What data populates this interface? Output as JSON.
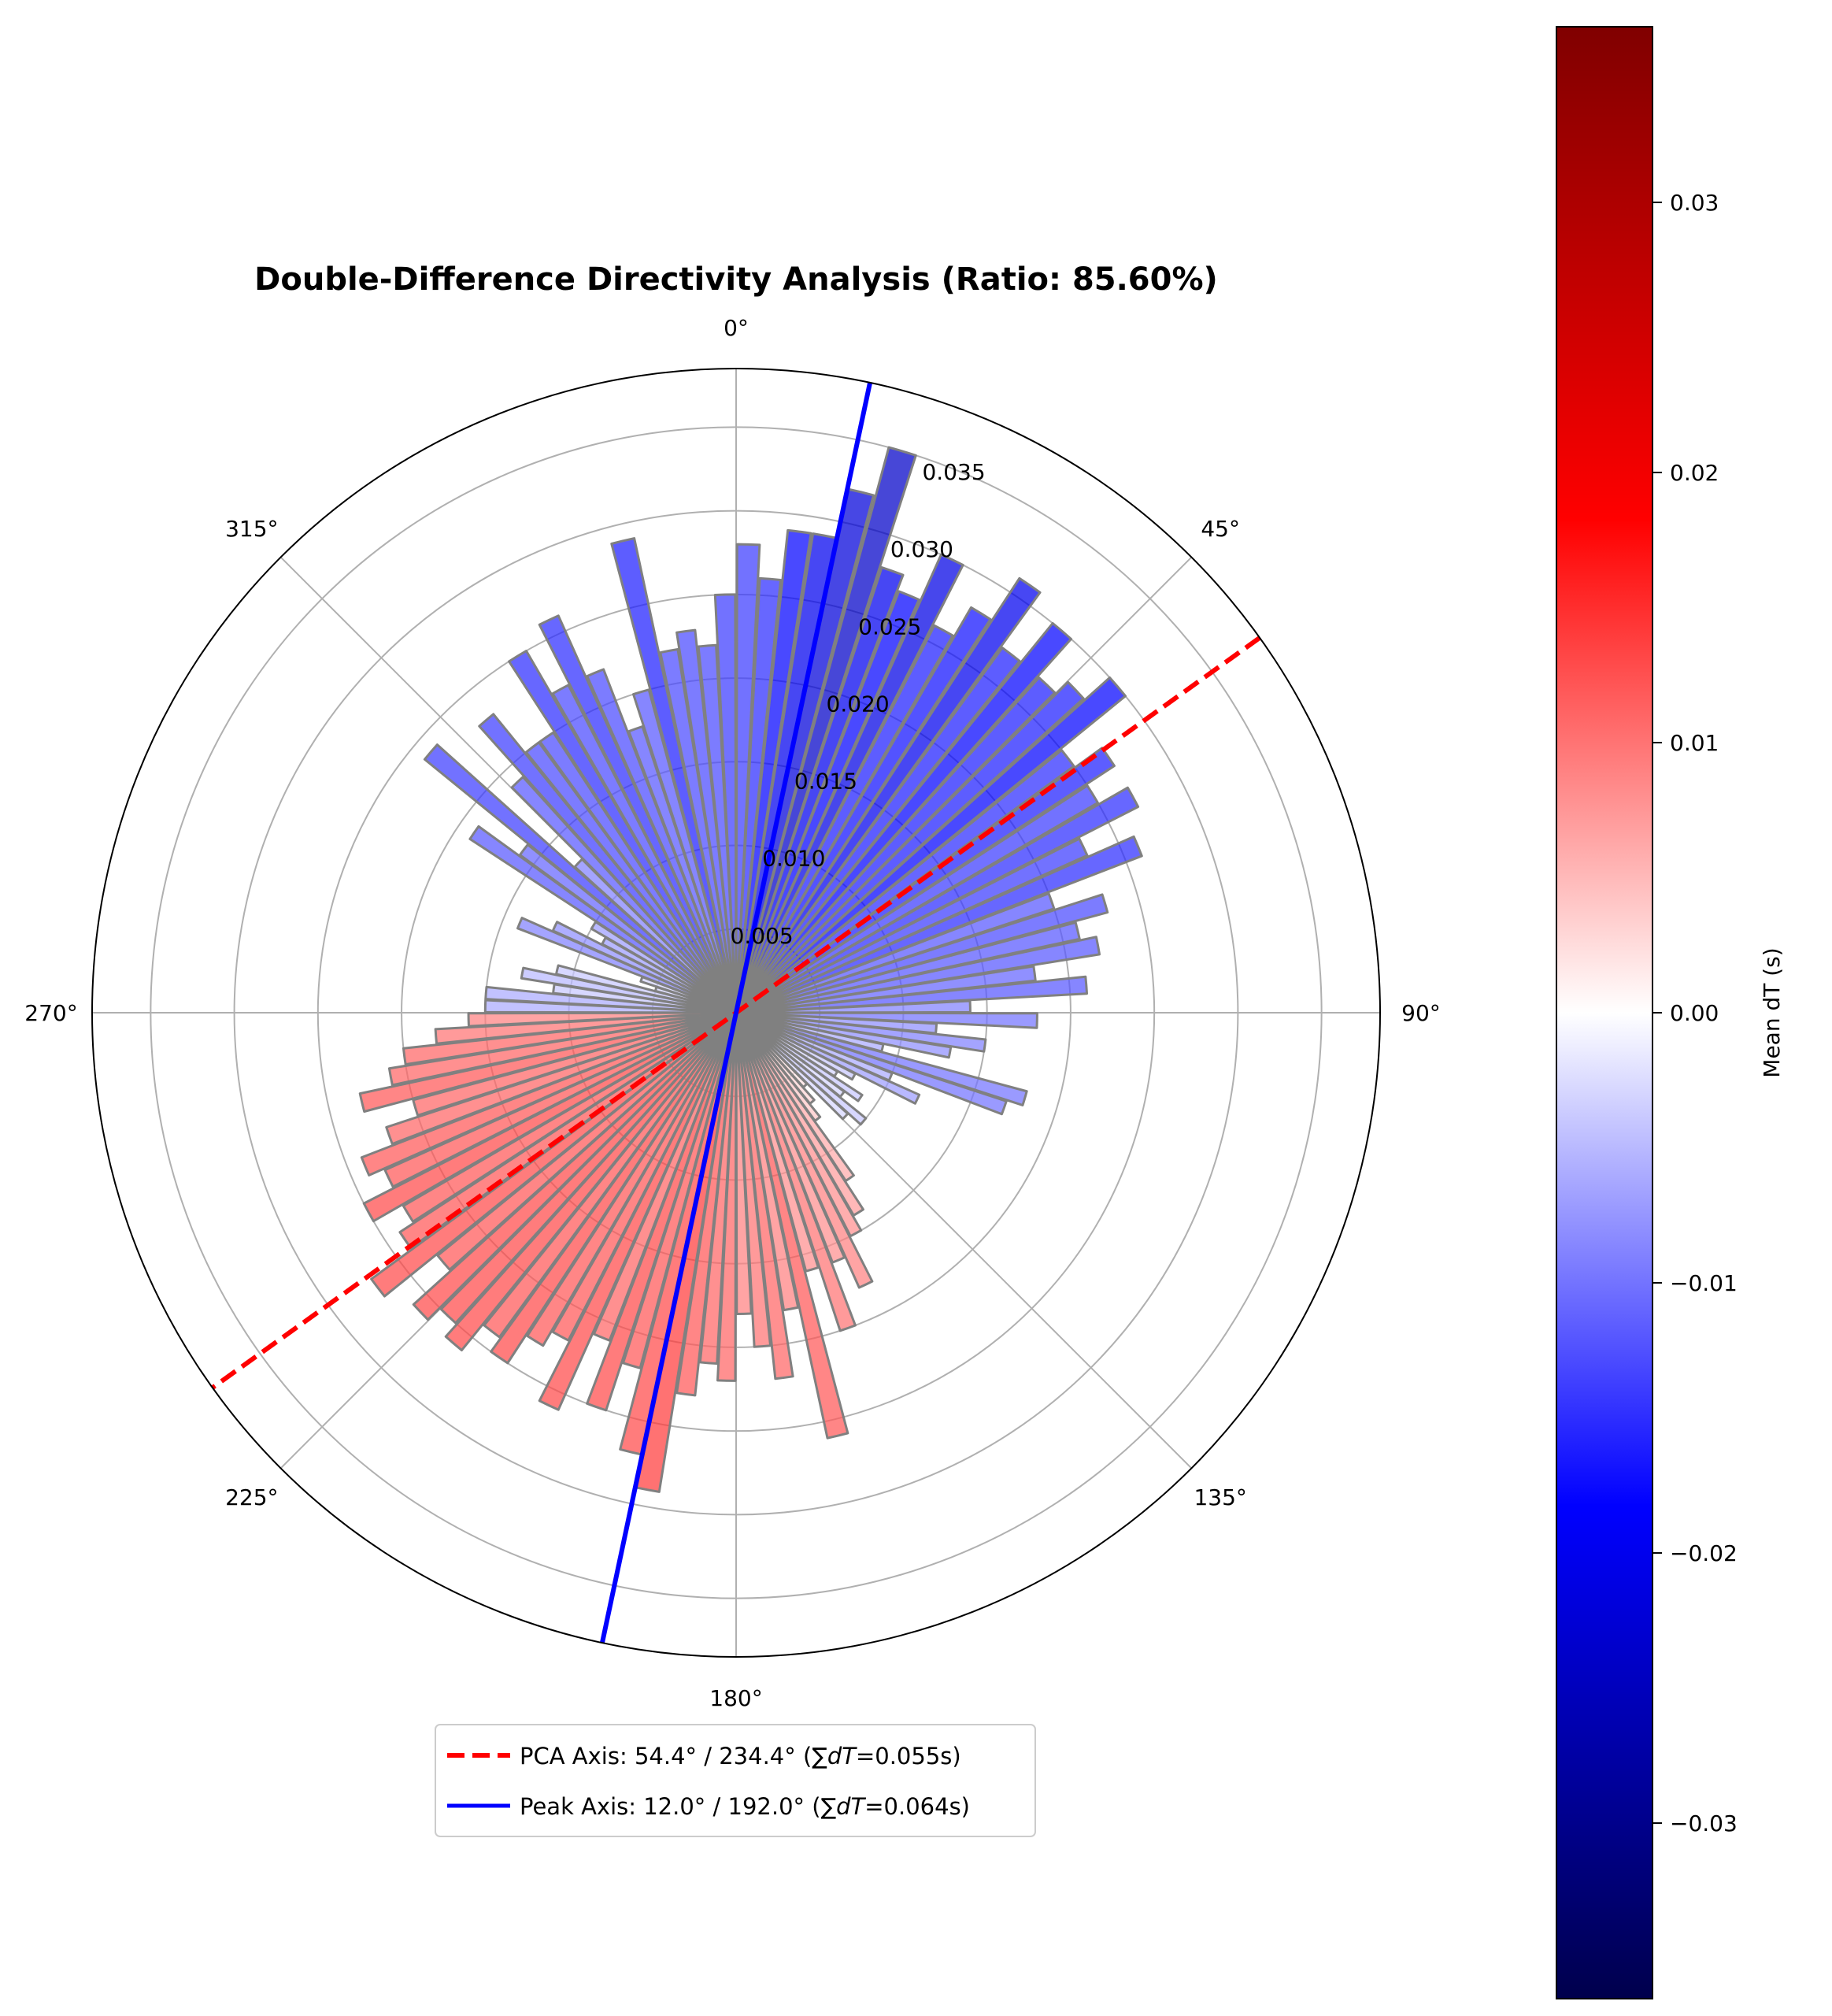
{
  "chart_data": {
    "type": "polar-bar",
    "title": "Double-Difference Directivity Analysis (Ratio: 85.60%)",
    "angle_ticks": [
      "0°",
      "45°",
      "90°",
      "135°",
      "180°",
      "225°",
      "270°",
      "315°"
    ],
    "angle_tick_values": [
      0,
      45,
      90,
      135,
      180,
      225,
      270,
      315
    ],
    "radial_ticks": [
      "0.005",
      "0.010",
      "0.015",
      "0.020",
      "0.025",
      "0.030",
      "0.035"
    ],
    "radial_tick_values": [
      0.005,
      0.01,
      0.015,
      0.02,
      0.025,
      0.03,
      0.035
    ],
    "rmax": 0.0385,
    "theta_zero": "N",
    "theta_direction": "clockwise",
    "bin_width_deg": 3,
    "bin_centers_deg": [
      1.5,
      4.5,
      7.5,
      10.5,
      13.5,
      16.5,
      19.5,
      22.5,
      25.5,
      28.5,
      31.5,
      34.5,
      37.5,
      40.5,
      43.5,
      46.5,
      49.5,
      52.5,
      55.5,
      58.5,
      61.5,
      64.5,
      67.5,
      70.5,
      73.5,
      76.5,
      79.5,
      82.5,
      85.5,
      88.5,
      91.5,
      94.5,
      97.5,
      100.5,
      103.5,
      106.5,
      109.5,
      112.5,
      115.5,
      118.5,
      121.5,
      124.5,
      127.5,
      130.5,
      133.5,
      136.5,
      139.5,
      142.5,
      145.5,
      148.5,
      151.5,
      154.5,
      157.5,
      160.5,
      163.5,
      166.5,
      169.5,
      172.5,
      175.5,
      178.5,
      181.5,
      184.5,
      187.5,
      190.5,
      193.5,
      196.5,
      199.5,
      202.5,
      205.5,
      208.5,
      211.5,
      214.5,
      217.5,
      220.5,
      223.5,
      226.5,
      229.5,
      232.5,
      235.5,
      238.5,
      241.5,
      244.5,
      247.5,
      250.5,
      253.5,
      256.5,
      259.5,
      262.5,
      265.5,
      268.5,
      271.5,
      274.5,
      277.5,
      280.5,
      283.5,
      286.5,
      289.5,
      292.5,
      295.5,
      298.5,
      301.5,
      304.5,
      307.5,
      310.5,
      313.5,
      316.5,
      319.5,
      322.5,
      325.5,
      328.5,
      331.5,
      334.5,
      337.5,
      340.5,
      343.5,
      346.5,
      349.5,
      352.5,
      355.5,
      358.5
    ],
    "radii": [
      0.028,
      0.026,
      0.029,
      0.029,
      0.032,
      0.035,
      0.028,
      0.027,
      0.03,
      0.026,
      0.028,
      0.031,
      0.027,
      0.03,
      0.027,
      0.028,
      0.03,
      0.025,
      0.027,
      0.025,
      0.027,
      0.023,
      0.026,
      0.02,
      0.023,
      0.021,
      0.022,
      0.018,
      0.021,
      0.014,
      0.018,
      0.012,
      0.015,
      0.013,
      0.009,
      0.018,
      0.017,
      0.01,
      0.012,
      0.008,
      0.007,
      0.009,
      0.008,
      0.01,
      0.009,
      0.006,
      0.007,
      0.008,
      0.012,
      0.014,
      0.015,
      0.018,
      0.016,
      0.02,
      0.016,
      0.026,
      0.018,
      0.022,
      0.02,
      0.018,
      0.022,
      0.021,
      0.023,
      0.029,
      0.027,
      0.022,
      0.025,
      0.021,
      0.026,
      0.022,
      0.023,
      0.025,
      0.024,
      0.026,
      0.025,
      0.026,
      0.023,
      0.027,
      0.024,
      0.023,
      0.025,
      0.023,
      0.024,
      0.022,
      0.02,
      0.023,
      0.021,
      0.02,
      0.018,
      0.016,
      0.015,
      0.015,
      0.011,
      0.013,
      0.011,
      0.005,
      0.006,
      0.014,
      0.012,
      0.009,
      0.01,
      0.019,
      0.016,
      0.024,
      0.013,
      0.019,
      0.023,
      0.02,
      0.02,
      0.025,
      0.022,
      0.026,
      0.022,
      0.018,
      0.02,
      0.029,
      0.022,
      0.023,
      0.022,
      0.025
    ],
    "mean_dT": [
      -0.014,
      -0.015,
      -0.018,
      -0.02,
      -0.022,
      -0.024,
      -0.02,
      -0.018,
      -0.021,
      -0.016,
      -0.017,
      -0.02,
      -0.016,
      -0.018,
      -0.016,
      -0.016,
      -0.018,
      -0.015,
      -0.016,
      -0.014,
      -0.015,
      -0.014,
      -0.015,
      -0.012,
      -0.013,
      -0.012,
      -0.012,
      -0.011,
      -0.012,
      -0.009,
      -0.01,
      -0.008,
      -0.009,
      -0.008,
      -0.006,
      -0.01,
      -0.01,
      -0.006,
      -0.007,
      -0.004,
      -0.003,
      -0.004,
      -0.003,
      -0.004,
      -0.003,
      0.002,
      0.003,
      0.004,
      0.006,
      0.007,
      0.008,
      0.009,
      0.008,
      0.01,
      0.008,
      0.012,
      0.009,
      0.011,
      0.01,
      0.009,
      0.011,
      0.011,
      0.012,
      0.014,
      0.013,
      0.012,
      0.013,
      0.011,
      0.013,
      0.012,
      0.012,
      0.013,
      0.012,
      0.013,
      0.013,
      0.013,
      0.012,
      0.013,
      0.012,
      0.012,
      0.013,
      0.012,
      0.012,
      0.011,
      0.011,
      0.012,
      0.011,
      0.011,
      0.01,
      0.009,
      -0.006,
      -0.006,
      -0.004,
      -0.005,
      -0.004,
      -0.003,
      -0.003,
      -0.009,
      -0.008,
      -0.007,
      -0.007,
      -0.012,
      -0.011,
      -0.014,
      -0.009,
      -0.012,
      -0.014,
      -0.013,
      -0.013,
      -0.015,
      -0.013,
      -0.015,
      -0.013,
      -0.012,
      -0.012,
      -0.016,
      -0.013,
      -0.013,
      -0.013,
      -0.014
    ],
    "colorbar": {
      "label": "Mean dT (s)",
      "vmin": -0.0365,
      "vmax": 0.0365,
      "ticks": [
        "−0.03",
        "−0.02",
        "−0.01",
        "0.00",
        "0.01",
        "0.02",
        "0.03"
      ],
      "tick_values": [
        -0.03,
        -0.02,
        -0.01,
        0.0,
        0.01,
        0.02,
        0.03
      ],
      "colormap": "seismic"
    },
    "lines": [
      {
        "name": "PCA Axis: 54.4° / 234.4° (∑dT=0.055s)",
        "label_prefix": "PCA Axis: 54.4° / 234.4° (",
        "label_math": "∑dT",
        "label_suffix": "=0.055s)",
        "angles_deg": [
          54.4,
          234.4
        ],
        "color": "#ff0000",
        "style": "dashed"
      },
      {
        "name": "Peak Axis: 12.0° / 192.0° (∑dT=0.064s)",
        "label_prefix": "Peak Axis: 12.0° / 192.0° (",
        "label_math": "∑dT",
        "label_suffix": "=0.064s)",
        "angles_deg": [
          12.0,
          192.0
        ],
        "color": "#0000ff",
        "style": "solid"
      }
    ],
    "legend_position": "bottom-center",
    "grid": true,
    "bar_edge_color": "#808080"
  }
}
